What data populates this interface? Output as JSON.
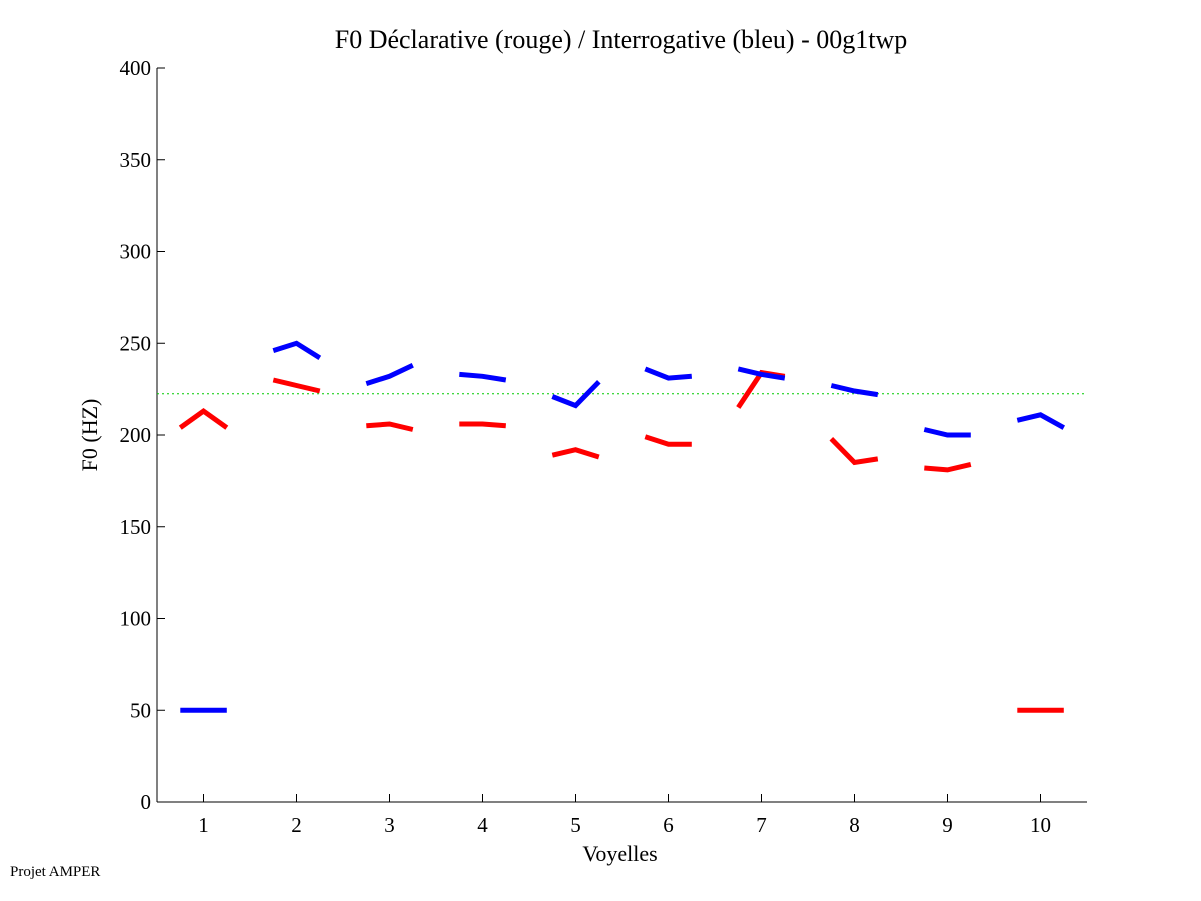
{
  "chart_data": {
    "type": "line",
    "title": "F0 Déclarative (rouge) / Interrogative (bleu) - 00g1twp",
    "xlabel": "Voyelles",
    "ylabel": "F0 (HZ)",
    "xlim": [
      0.5,
      10.5
    ],
    "ylim": [
      0,
      400
    ],
    "xticks": [
      1,
      2,
      3,
      4,
      5,
      6,
      7,
      8,
      9,
      10
    ],
    "yticks": [
      0,
      50,
      100,
      150,
      200,
      250,
      300,
      350,
      400
    ],
    "grid": false,
    "reference_line": {
      "y": 222.5,
      "color": "#00cc00",
      "style": "dotted"
    },
    "colors": {
      "declarative": "#ff0000",
      "interrogative": "#0000ff"
    },
    "series": [
      {
        "name": "Déclarative (rouge)",
        "color": "#ff0000",
        "segments": [
          {
            "vowel": 1,
            "values": [
              204,
              213,
              204
            ]
          },
          {
            "vowel": 2,
            "values": [
              230,
              227,
              224
            ]
          },
          {
            "vowel": 3,
            "values": [
              205,
              206,
              203
            ]
          },
          {
            "vowel": 4,
            "values": [
              206,
              206,
              205
            ]
          },
          {
            "vowel": 5,
            "values": [
              189,
              192,
              188
            ]
          },
          {
            "vowel": 6,
            "values": [
              199,
              195,
              195
            ]
          },
          {
            "vowel": 7,
            "values": [
              215,
              234,
              232
            ]
          },
          {
            "vowel": 8,
            "values": [
              198,
              185,
              187
            ]
          },
          {
            "vowel": 9,
            "values": [
              182,
              181,
              184
            ]
          },
          {
            "vowel": 10,
            "values": [
              50,
              50,
              50
            ]
          }
        ]
      },
      {
        "name": "Interrogative (bleu)",
        "color": "#0000ff",
        "segments": [
          {
            "vowel": 1,
            "values": [
              50,
              50,
              50
            ]
          },
          {
            "vowel": 2,
            "values": [
              246,
              250,
              242
            ]
          },
          {
            "vowel": 3,
            "values": [
              228,
              232,
              238
            ]
          },
          {
            "vowel": 4,
            "values": [
              233,
              232,
              230
            ]
          },
          {
            "vowel": 5,
            "values": [
              221,
              216,
              229
            ]
          },
          {
            "vowel": 6,
            "values": [
              236,
              231,
              232
            ]
          },
          {
            "vowel": 7,
            "values": [
              236,
              233,
              231
            ]
          },
          {
            "vowel": 8,
            "values": [
              227,
              224,
              222
            ]
          },
          {
            "vowel": 9,
            "values": [
              203,
              200,
              200
            ]
          },
          {
            "vowel": 10,
            "values": [
              208,
              211,
              204
            ]
          }
        ]
      }
    ]
  },
  "footer": "Projet AMPER"
}
